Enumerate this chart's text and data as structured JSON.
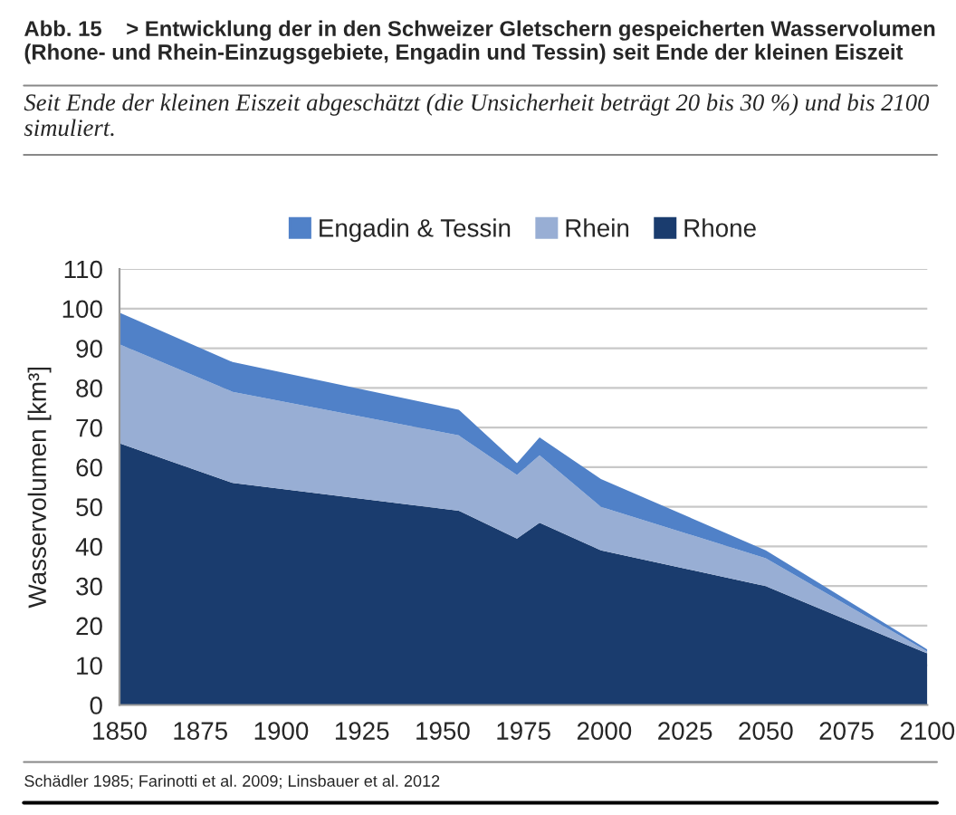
{
  "chart_data": {
    "type": "area",
    "stacked": true,
    "title": "Abb. 15    > Entwicklung der in den Schweizer Gletschern gespeicherten Wasservolumen\n(Rhone- und Rhein-Einzugsgebiete, Engadin und Tessin) seit Ende der kleinen Eiszeit",
    "subtitle": "Seit Ende der kleinen Eiszeit abgeschätzt (die Unsicherheit beträgt 20 bis 30 %) und bis 2100\nsimuliert.",
    "ylabel": "Wasservolumen [km³]",
    "x": [
      1850,
      1885,
      1955,
      1973,
      1980,
      1999,
      2050,
      2100
    ],
    "series": [
      {
        "name": "Rhone",
        "color": "#1a3c6e",
        "values": [
          66,
          56,
          49,
          42,
          46,
          39,
          30,
          13
        ]
      },
      {
        "name": "Rhein",
        "color": "#98aed4",
        "values": [
          25,
          23,
          19,
          16,
          17,
          11,
          7,
          0.5
        ]
      },
      {
        "name": "Engadin & Tessin",
        "color": "#5081c8",
        "values": [
          8,
          7.5,
          6.5,
          3,
          4.5,
          7,
          2,
          0.5
        ]
      }
    ],
    "xlim": [
      1850,
      2100
    ],
    "xticks": [
      1850,
      1875,
      1900,
      1925,
      1950,
      1975,
      2000,
      2025,
      2050,
      2075,
      2100
    ],
    "ylim": [
      0,
      110
    ],
    "yticks": [
      0,
      10,
      20,
      30,
      40,
      50,
      60,
      70,
      80,
      90,
      100,
      110
    ],
    "grid": "y",
    "legend": "top",
    "annotations": [
      "Schädler 1985; Farinotti et al. 2009; Linsbauer et al. 2012"
    ]
  }
}
